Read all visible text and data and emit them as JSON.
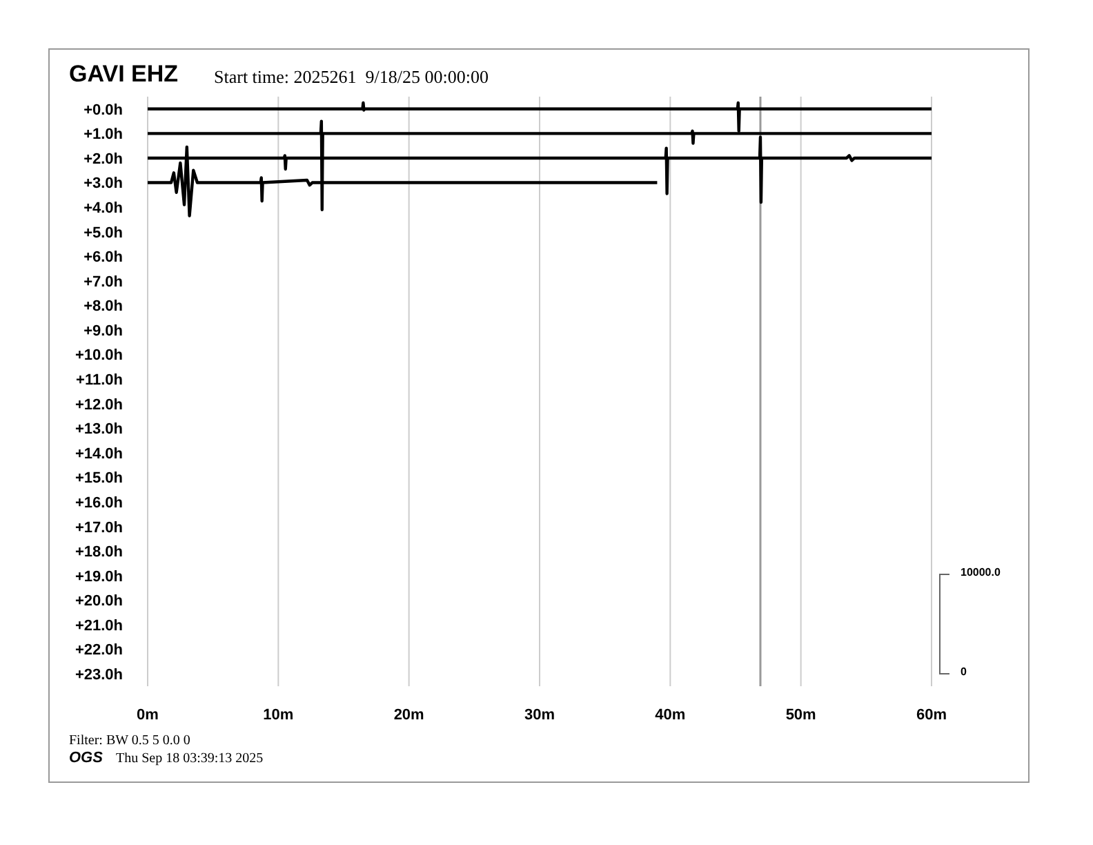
{
  "chart_data": {
    "type": "line",
    "title": "GAVI EHZ",
    "subtitle": "Start time: 2025261  9/18/25 00:00:00",
    "annotations": [
      "Filter: BW 0.5 5 0.0 0",
      "OGS",
      "Thu Sep 18 03:39:13 2025",
      "10000.0",
      "0"
    ],
    "xlim": [
      0,
      60
    ],
    "xticks": [
      {
        "value": 0,
        "label": "0m"
      },
      {
        "value": 10,
        "label": "10m"
      },
      {
        "value": 20,
        "label": "20m"
      },
      {
        "value": 30,
        "label": "30m"
      },
      {
        "value": 40,
        "label": "40m"
      },
      {
        "value": 50,
        "label": "50m"
      },
      {
        "value": 60,
        "label": "60m"
      }
    ],
    "ylim": [
      23.5,
      -0.5
    ],
    "yticks": [
      {
        "value": 0,
        "label": "+0.0h"
      },
      {
        "value": 1,
        "label": "+1.0h"
      },
      {
        "value": 2,
        "label": "+2.0h"
      },
      {
        "value": 3,
        "label": "+3.0h"
      },
      {
        "value": 4,
        "label": "+4.0h"
      },
      {
        "value": 5,
        "label": "+5.0h"
      },
      {
        "value": 6,
        "label": "+6.0h"
      },
      {
        "value": 7,
        "label": "+7.0h"
      },
      {
        "value": 8,
        "label": "+8.0h"
      },
      {
        "value": 9,
        "label": "+9.0h"
      },
      {
        "value": 10,
        "label": "+10.0h"
      },
      {
        "value": 11,
        "label": "+11.0h"
      },
      {
        "value": 12,
        "label": "+12.0h"
      },
      {
        "value": 13,
        "label": "+13.0h"
      },
      {
        "value": 14,
        "label": "+14.0h"
      },
      {
        "value": 15,
        "label": "+15.0h"
      },
      {
        "value": 16,
        "label": "+16.0h"
      },
      {
        "value": 17,
        "label": "+17.0h"
      },
      {
        "value": 18,
        "label": "+18.0h"
      },
      {
        "value": 19,
        "label": "+19.0h"
      },
      {
        "value": 20,
        "label": "+20.0h"
      },
      {
        "value": 21,
        "label": "+21.0h"
      },
      {
        "value": 22,
        "label": "+22.0h"
      },
      {
        "value": 23,
        "label": "+23.0h"
      }
    ],
    "grid": "x",
    "marker": "none",
    "line_style": "solid",
    "ref_lines": [
      {
        "axis": "x",
        "value": 46.9,
        "color": "#999999"
      }
    ],
    "series": [
      {
        "color": "#000000",
        "x": [
          0,
          16.45,
          16.5,
          16.55,
          16.6,
          45.15,
          45.2,
          45.25,
          45.3,
          60
        ],
        "values": [
          0,
          0,
          -0.25,
          0.05,
          0,
          0,
          -0.25,
          0.9,
          0,
          0
        ]
      },
      {
        "color": "#000000",
        "x": [
          0,
          13.25,
          13.3,
          13.35,
          13.4,
          41.65,
          41.7,
          41.75,
          41.8,
          60
        ],
        "values": [
          1,
          1,
          0.5,
          4.1,
          1,
          1,
          0.9,
          1.4,
          1,
          1
        ]
      },
      {
        "color": "#000000",
        "x": [
          0,
          10.45,
          10.5,
          10.55,
          10.6,
          39.65,
          39.7,
          39.75,
          39.8,
          46.85,
          46.9,
          46.95,
          47,
          53.5,
          53.7,
          53.9,
          54.1,
          60
        ],
        "values": [
          2,
          2,
          1.9,
          2.45,
          2,
          2,
          1.6,
          3.45,
          2,
          2,
          1.15,
          3.8,
          2,
          2,
          1.9,
          2.1,
          2,
          2
        ]
      },
      {
        "color": "#000000",
        "x": [
          0,
          1.8,
          2.0,
          2.2,
          2.5,
          2.8,
          3.0,
          3.2,
          3.5,
          3.8,
          8.65,
          8.7,
          8.75,
          8.8,
          12.2,
          12.4,
          12.6,
          39
        ],
        "values": [
          3,
          3,
          2.6,
          3.4,
          2.2,
          3.9,
          1.55,
          4.35,
          2.5,
          3,
          3,
          2.8,
          3.75,
          3,
          2.9,
          3.1,
          3,
          3
        ]
      }
    ]
  }
}
